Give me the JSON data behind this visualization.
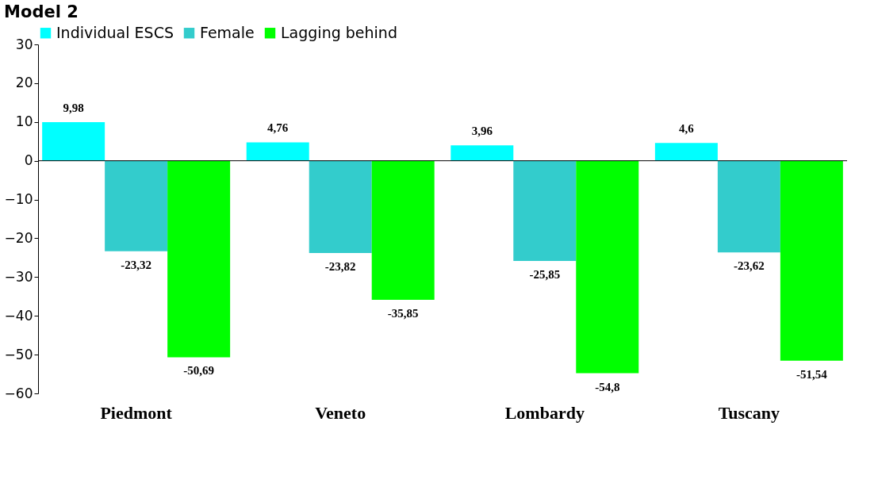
{
  "chart_data": {
    "type": "bar",
    "title": "Model 2",
    "categories": [
      "Piedmont",
      "Veneto",
      "Lombardy",
      "Tuscany"
    ],
    "series": [
      {
        "name": "Individual ESCS",
        "color": "#00ffff",
        "values": [
          9.98,
          4.76,
          3.96,
          4.6
        ],
        "value_labels": [
          "9,98",
          "4,76",
          "3,96",
          "4,6"
        ]
      },
      {
        "name": "Female",
        "color": "#33cccc",
        "values": [
          -23.32,
          -23.82,
          -25.85,
          -23.62
        ],
        "value_labels": [
          "-23,32",
          "-23,82",
          "-25,85",
          "-23,62"
        ]
      },
      {
        "name": "Lagging behind",
        "color": "#00ff00",
        "values": [
          -50.69,
          -35.85,
          -54.8,
          -51.54
        ],
        "value_labels": [
          "-50,69",
          "-35,85",
          "-54,8",
          "-51,54"
        ]
      }
    ],
    "ylim": [
      -60,
      30
    ],
    "yticks": [
      -60,
      -50,
      -40,
      -30,
      -20,
      -10,
      0,
      10,
      20,
      30
    ],
    "grid": false,
    "legend": "top",
    "ref_lines": [
      {
        "axis": "y",
        "value": 0,
        "color": "#000000"
      }
    ]
  }
}
